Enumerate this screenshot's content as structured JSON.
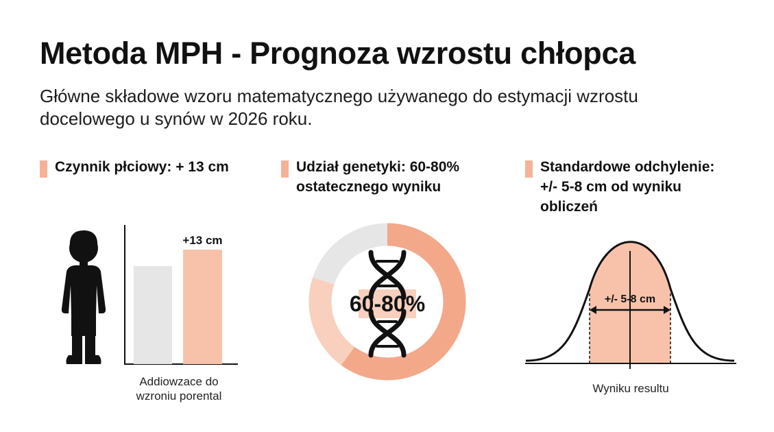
{
  "title": "Metoda MPH - Prognoza wzrostu chłopca",
  "subtitle": {
    "line1": "Główne składowe wzoru matematycznego używanego do estymacji wzrostu",
    "line2": "docelowego u synów w 2026 roku."
  },
  "colors": {
    "accent": "#f6b296",
    "accent_fill": "#f8c2aa",
    "donut_accent": "#f3a88a",
    "neutral_gray": "#e6e6e6",
    "donut_light": "#f8d0bd",
    "text": "#111111"
  },
  "sections": [
    {
      "heading_lines": [
        "Czynnik płciowy: + 13 cm"
      ],
      "bar_label": "+13 cm",
      "icon": "boy-silhouette-icon",
      "caption_lines": [
        "Addiowzace do",
        "wzroniu porental"
      ]
    },
    {
      "heading_lines": [
        "Udział genetyki: 60-80%",
        "ostatecznego wyniku"
      ],
      "center_label": "60-80%",
      "icon": "dna-helix-icon",
      "share_range_percent": [
        60,
        80
      ]
    },
    {
      "heading_lines": [
        "Standardowe odchylenie:",
        "+/- 5-8 cm od wyniku",
        "obliczeń"
      ],
      "range_label": "+/- 5-8 cm",
      "caption_lines": [
        "Wyniku resultu"
      ]
    }
  ]
}
